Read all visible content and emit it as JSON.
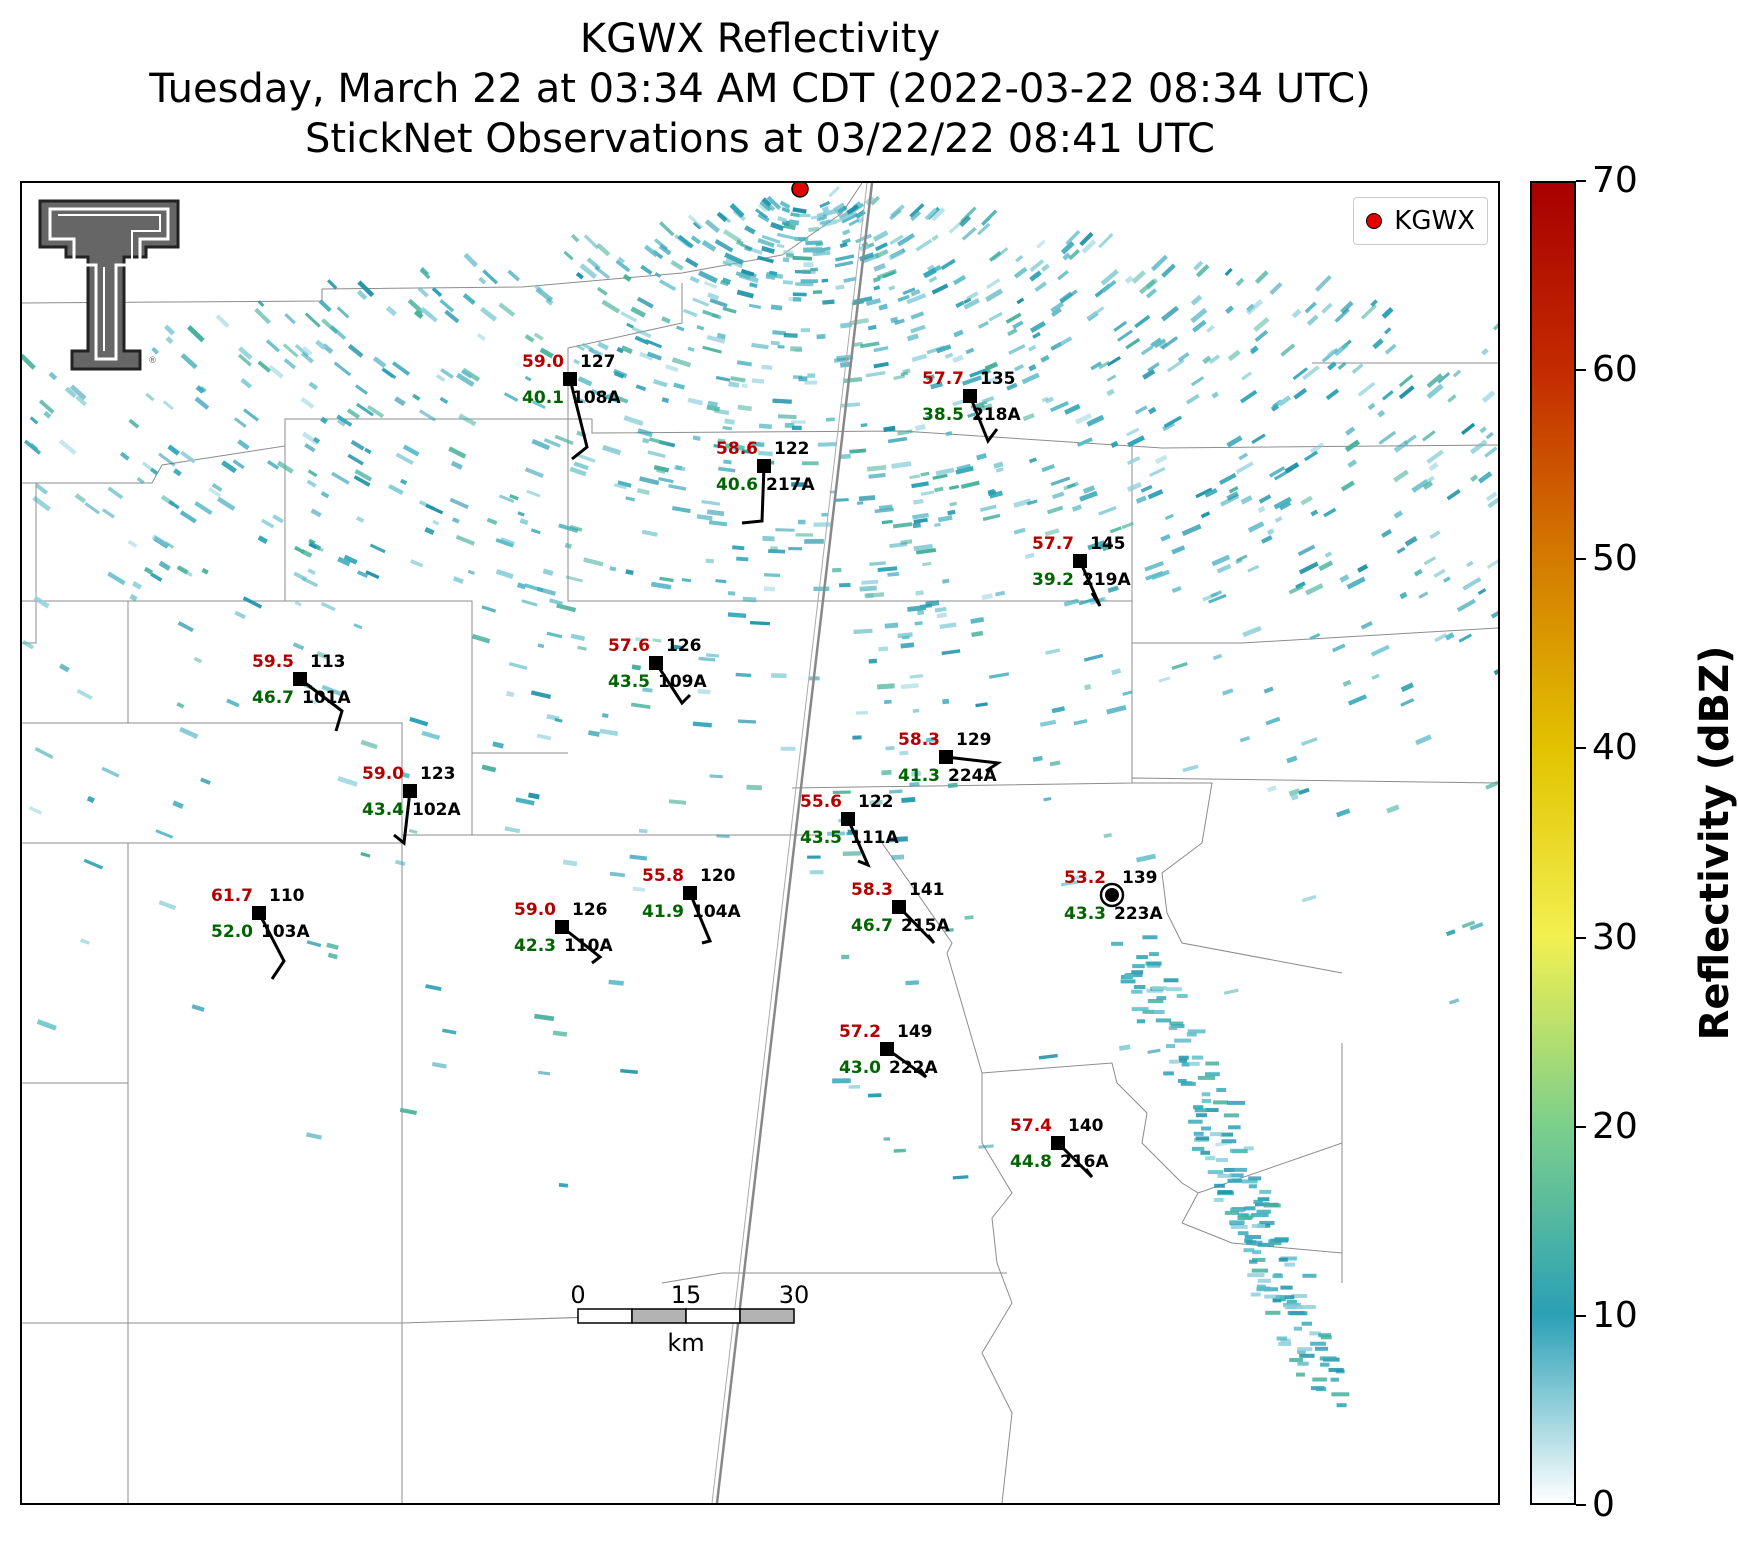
{
  "title": {
    "line1": "KGWX Reflectivity",
    "line2": "Tuesday, March 22 at 03:34 AM CDT (2022-03-22 08:34 UTC)",
    "line3": "StickNet Observations at 03/22/22 08:41 UTC"
  },
  "legend": {
    "label": "KGWX",
    "color": "#e00000"
  },
  "colorbar": {
    "label": "Reflectivity (dBZ)",
    "ticks": [
      "0",
      "10",
      "20",
      "30",
      "40",
      "50",
      "60",
      "70"
    ],
    "range": [
      0,
      70
    ],
    "colors": [
      "#ffffff",
      "#2aa0b5",
      "#7ccf8c",
      "#f2f050",
      "#e2c300",
      "#d47b00",
      "#c42b00",
      "#a80000"
    ]
  },
  "scale_bar": {
    "labels": [
      "0",
      "15",
      "30"
    ],
    "unit": "km"
  },
  "stations": [
    {
      "id": "108A",
      "temp": "59.0",
      "dew": "40.1",
      "press": "127"
    },
    {
      "id": "217A",
      "temp": "58.6",
      "dew": "40.6",
      "press": "122"
    },
    {
      "id": "218A",
      "temp": "57.7",
      "dew": "38.5",
      "press": "135"
    },
    {
      "id": "219A",
      "temp": "57.7",
      "dew": "39.2",
      "press": "145"
    },
    {
      "id": "101A",
      "temp": "59.5",
      "dew": "46.7",
      "press": "113"
    },
    {
      "id": "109A",
      "temp": "57.6",
      "dew": "43.5",
      "press": "126"
    },
    {
      "id": "224A",
      "temp": "58.3",
      "dew": "41.3",
      "press": "129"
    },
    {
      "id": "102A",
      "temp": "59.0",
      "dew": "43.4",
      "press": "123"
    },
    {
      "id": "111A",
      "temp": "55.6",
      "dew": "43.5",
      "press": "122"
    },
    {
      "id": "103A",
      "temp": "61.7",
      "dew": "52.0",
      "press": "110"
    },
    {
      "id": "110A",
      "temp": "59.0",
      "dew": "42.3",
      "press": "126"
    },
    {
      "id": "104A",
      "temp": "55.8",
      "dew": "41.9",
      "press": "120"
    },
    {
      "id": "215A",
      "temp": "58.3",
      "dew": "46.7",
      "press": "141"
    },
    {
      "id": "223A",
      "temp": "53.2",
      "dew": "43.3",
      "press": "139"
    },
    {
      "id": "222A",
      "temp": "57.2",
      "dew": "43.0",
      "press": "149"
    },
    {
      "id": "216A",
      "temp": "57.4",
      "dew": "44.8",
      "press": "140"
    }
  ]
}
